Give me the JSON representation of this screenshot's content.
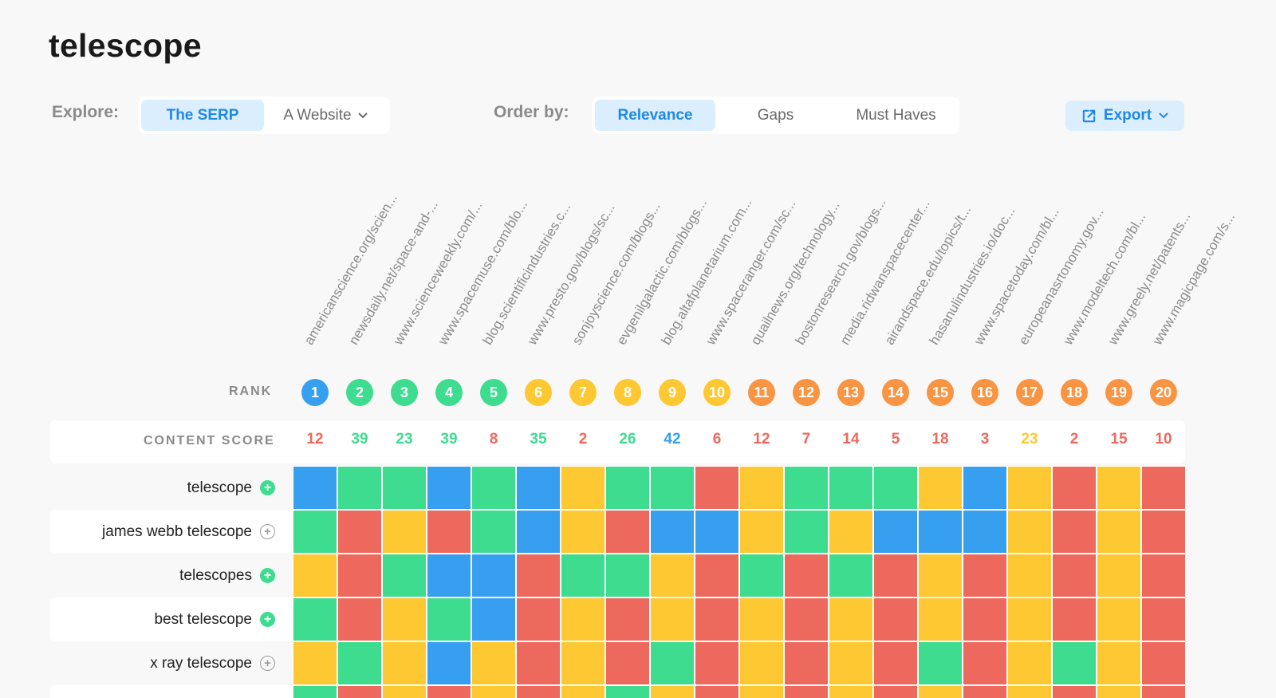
{
  "title": "telescope",
  "explore": {
    "label": "Explore:",
    "options": [
      {
        "label": "The SERP",
        "active": true
      },
      {
        "label": "A Website",
        "active": false
      }
    ]
  },
  "order_by": {
    "label": "Order by:",
    "options": [
      {
        "label": "Relevance",
        "active": true
      },
      {
        "label": "Gaps",
        "active": false
      },
      {
        "label": "Must Haves",
        "active": false
      }
    ]
  },
  "export": {
    "label": "Export",
    "icon": "external-link-icon"
  },
  "colors": {
    "blue": "#369ff0",
    "green": "#3ddc8f",
    "yellow": "#fdc832",
    "orange": "#f89442",
    "red": "#ee695d",
    "link": "#1f88e5"
  },
  "rank_label": "RANK",
  "content_score_label": "CONTENT SCORE",
  "results": [
    {
      "url": "americanscience.org/scien...",
      "rank": "1",
      "rank_color": "blue",
      "score": "12",
      "score_color": "red"
    },
    {
      "url": "newsdaily.net/space-and-...",
      "rank": "2",
      "rank_color": "green",
      "score": "39",
      "score_color": "green"
    },
    {
      "url": "www.scienceweekly.com/...",
      "rank": "3",
      "rank_color": "green",
      "score": "23",
      "score_color": "green"
    },
    {
      "url": "www.spacemuse.com/blo...",
      "rank": "4",
      "rank_color": "green",
      "score": "39",
      "score_color": "green"
    },
    {
      "url": "blog.scientificindustries.c...",
      "rank": "5",
      "rank_color": "green",
      "score": "8",
      "score_color": "red"
    },
    {
      "url": "www.presto.gov/blogs/sc...",
      "rank": "6",
      "rank_color": "yellow",
      "score": "35",
      "score_color": "green"
    },
    {
      "url": "sonjoyscience.com/blogs...",
      "rank": "7",
      "rank_color": "yellow",
      "score": "2",
      "score_color": "red"
    },
    {
      "url": "evgenilgalactic.com/blogs...",
      "rank": "8",
      "rank_color": "yellow",
      "score": "26",
      "score_color": "green"
    },
    {
      "url": "blog.altafplanetarium.com...",
      "rank": "9",
      "rank_color": "yellow",
      "score": "42",
      "score_color": "blue"
    },
    {
      "url": "www.spaceranger.com/sc...",
      "rank": "10",
      "rank_color": "yellow",
      "score": "6",
      "score_color": "red"
    },
    {
      "url": "quailnews.org/technology...",
      "rank": "11",
      "rank_color": "orange",
      "score": "12",
      "score_color": "red"
    },
    {
      "url": "bostonresearch.gov/blogs...",
      "rank": "12",
      "rank_color": "orange",
      "score": "7",
      "score_color": "red"
    },
    {
      "url": "media.ridwanspacecenter...",
      "rank": "13",
      "rank_color": "orange",
      "score": "14",
      "score_color": "red"
    },
    {
      "url": "airandspace.edu/topics/t...",
      "rank": "14",
      "rank_color": "orange",
      "score": "5",
      "score_color": "red"
    },
    {
      "url": "hasanulindustries.io/doc...",
      "rank": "15",
      "rank_color": "orange",
      "score": "18",
      "score_color": "red"
    },
    {
      "url": "www.spacetoday.com/bl...",
      "rank": "16",
      "rank_color": "orange",
      "score": "3",
      "score_color": "red"
    },
    {
      "url": "europeanasrtonomy.gov...",
      "rank": "17",
      "rank_color": "orange",
      "score": "23",
      "score_color": "yellow"
    },
    {
      "url": "www.modeltech.com/bl...",
      "rank": "18",
      "rank_color": "orange",
      "score": "2",
      "score_color": "red"
    },
    {
      "url": "www.greely.net/patents...",
      "rank": "19",
      "rank_color": "orange",
      "score": "15",
      "score_color": "red"
    },
    {
      "url": "www.magicpage.com/s...",
      "rank": "20",
      "rank_color": "orange",
      "score": "10",
      "score_color": "red"
    }
  ],
  "keywords": [
    {
      "label": "telescope",
      "added": true,
      "cells": [
        "blue",
        "green",
        "green",
        "blue",
        "green",
        "blue",
        "yellow",
        "green",
        "green",
        "red",
        "yellow",
        "green",
        "green",
        "green",
        "yellow",
        "blue",
        "yellow",
        "red",
        "yellow",
        "red"
      ]
    },
    {
      "label": "james webb telescope",
      "added": false,
      "cells": [
        "green",
        "red",
        "yellow",
        "red",
        "green",
        "blue",
        "yellow",
        "red",
        "blue",
        "blue",
        "yellow",
        "green",
        "yellow",
        "blue",
        "blue",
        "blue",
        "yellow",
        "red",
        "yellow",
        "red"
      ]
    },
    {
      "label": "telescopes",
      "added": true,
      "cells": [
        "yellow",
        "red",
        "green",
        "blue",
        "blue",
        "red",
        "green",
        "green",
        "yellow",
        "red",
        "green",
        "red",
        "green",
        "red",
        "yellow",
        "red",
        "yellow",
        "red",
        "yellow",
        "red"
      ]
    },
    {
      "label": "best telescope",
      "added": true,
      "cells": [
        "green",
        "red",
        "yellow",
        "green",
        "blue",
        "red",
        "yellow",
        "red",
        "yellow",
        "red",
        "yellow",
        "red",
        "yellow",
        "red",
        "yellow",
        "red",
        "yellow",
        "red",
        "yellow",
        "red"
      ]
    },
    {
      "label": "x ray telescope",
      "added": false,
      "cells": [
        "yellow",
        "green",
        "yellow",
        "blue",
        "yellow",
        "red",
        "yellow",
        "red",
        "green",
        "red",
        "yellow",
        "red",
        "yellow",
        "red",
        "green",
        "red",
        "yellow",
        "green",
        "yellow",
        "red"
      ]
    },
    {
      "label": "",
      "added": false,
      "cells": [
        "green",
        "red",
        "yellow",
        "red",
        "yellow",
        "red",
        "yellow",
        "green",
        "yellow",
        "red",
        "yellow",
        "red",
        "yellow",
        "red",
        "yellow",
        "red",
        "yellow",
        "red",
        "yellow",
        "red"
      ]
    }
  ]
}
